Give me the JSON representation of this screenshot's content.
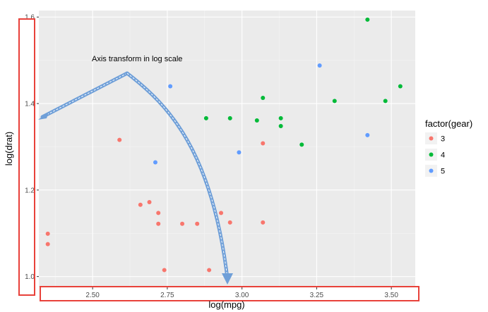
{
  "chart_data": {
    "type": "scatter",
    "xlabel": "log(mpg)",
    "ylabel": "log(drat)",
    "xlim": [
      2.32,
      3.58
    ],
    "ylim": [
      0.975,
      1.615
    ],
    "x_ticks": [
      "2.50",
      "2.75",
      "3.00",
      "3.25",
      "3.50"
    ],
    "y_ticks": [
      "1.0",
      "1.2",
      "1.4",
      "1.6"
    ],
    "grid": true,
    "legend": {
      "title": "factor(gear)",
      "placement": "right"
    },
    "colors": {
      "3": "#F8766D",
      "4": "#00BA38",
      "5": "#619CFF"
    },
    "annotation": "Axis transform in log scale",
    "series": [
      {
        "name": "3",
        "points": [
          [
            2.35,
            1.099
          ],
          [
            2.35,
            1.075
          ],
          [
            2.59,
            1.316
          ],
          [
            2.66,
            1.166
          ],
          [
            2.69,
            1.172
          ],
          [
            2.72,
            1.147
          ],
          [
            2.72,
            1.122
          ],
          [
            2.74,
            1.015
          ],
          [
            2.8,
            1.122
          ],
          [
            2.85,
            1.122
          ],
          [
            2.89,
            1.015
          ],
          [
            2.93,
            1.147
          ],
          [
            2.96,
            1.125
          ],
          [
            3.07,
            1.308
          ],
          [
            3.07,
            1.125
          ]
        ]
      },
      {
        "name": "4",
        "points": [
          [
            2.88,
            1.366
          ],
          [
            2.96,
            1.366
          ],
          [
            3.05,
            1.361
          ],
          [
            3.07,
            1.413
          ],
          [
            3.13,
            1.366
          ],
          [
            3.13,
            1.348
          ],
          [
            3.2,
            1.305
          ],
          [
            3.31,
            1.406
          ],
          [
            3.42,
            1.594
          ],
          [
            3.48,
            1.406
          ],
          [
            3.53,
            1.44
          ]
        ]
      },
      {
        "name": "5",
        "points": [
          [
            2.71,
            1.264
          ],
          [
            2.76,
            1.44
          ],
          [
            2.99,
            1.287
          ],
          [
            3.26,
            1.488
          ],
          [
            3.42,
            1.327
          ]
        ]
      }
    ]
  }
}
